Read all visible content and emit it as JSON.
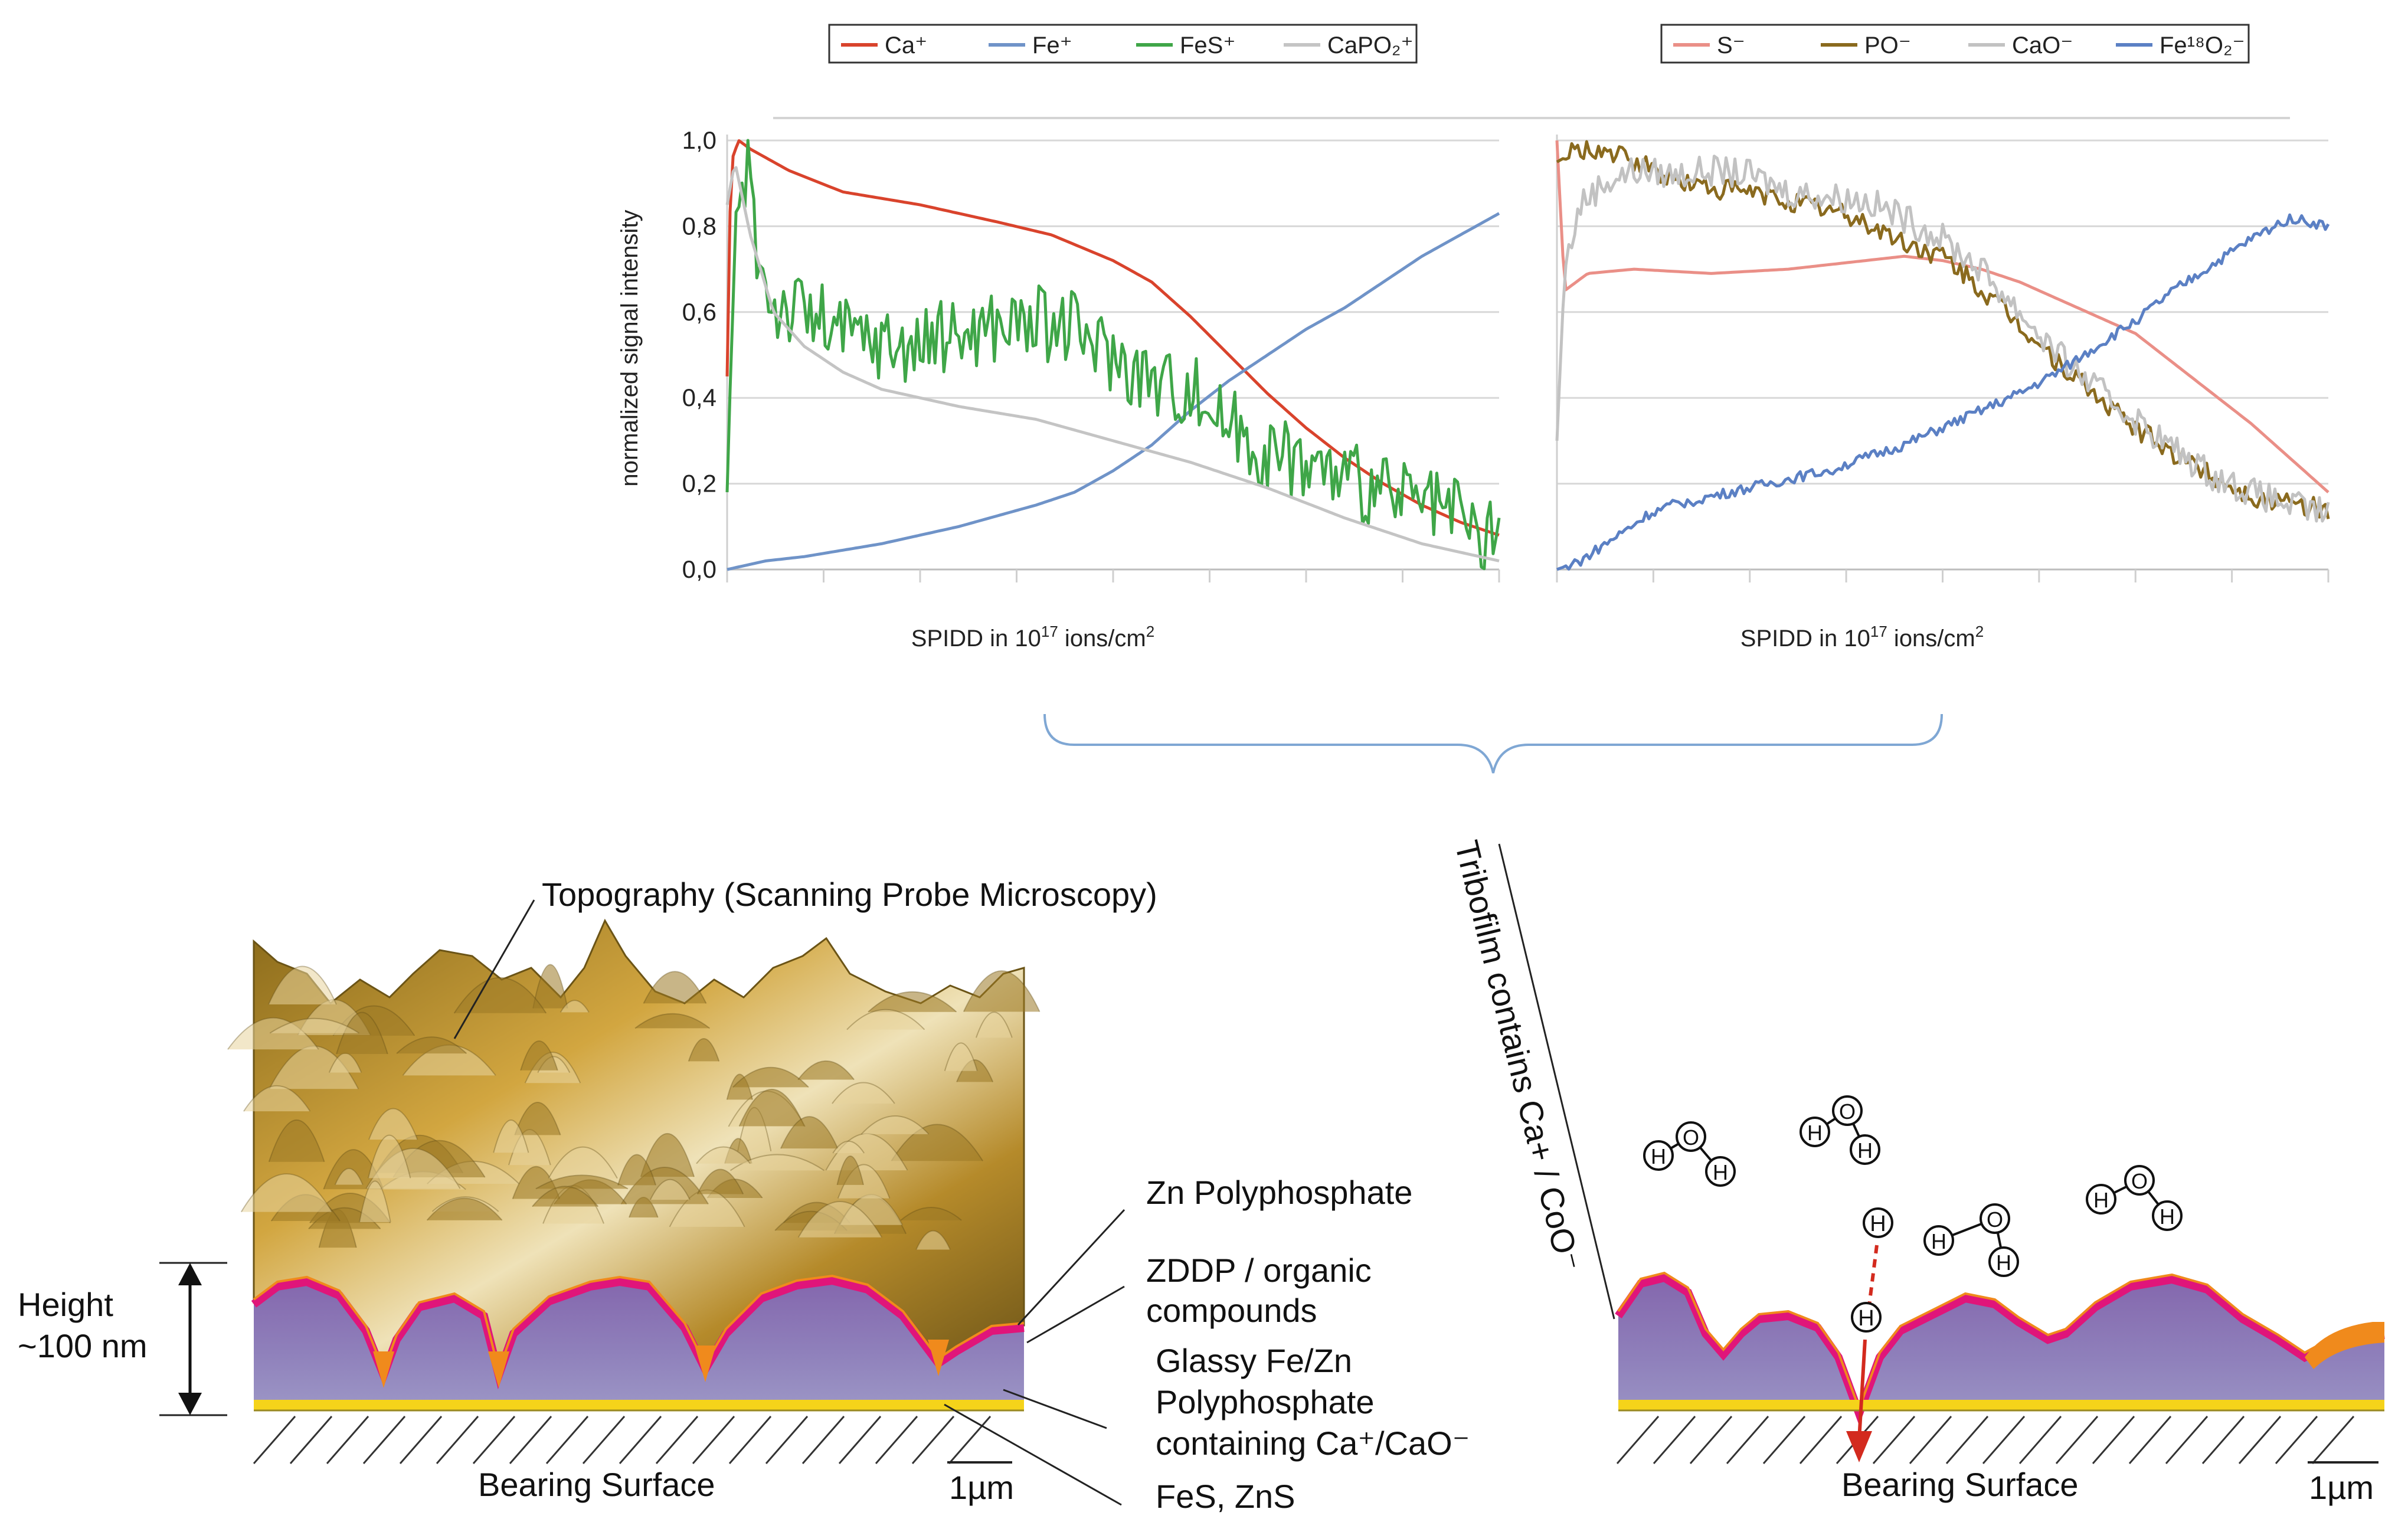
{
  "colors": {
    "ca": "#d9432c",
    "fe": "#6f93c8",
    "fes": "#3fa648",
    "capo2": "#c4c4c4",
    "s": "#ea8f87",
    "po": "#8a6a1e",
    "cao": "#c2c2c2",
    "fe18o2": "#5b80c4",
    "polyphosphate": "#8a6fb0",
    "zn_polyphosphate": "#e0157a",
    "zddp": "#f08a1c",
    "fes_zns": "#f5d31a",
    "topography": "#b08a2e",
    "arrow_red": "#d32a1e",
    "bracket": "#7fa7d4"
  },
  "chart_data": [
    {
      "type": "line",
      "ylabel": "normalized signal intensity",
      "xlabel_text": "SPIDD in 10",
      "xlabel_sup": "17",
      "xlabel_unit": " ions/cm",
      "xlabel_sup2": "2",
      "ylim": [
        0,
        1.0
      ],
      "yticks": [
        "0,0",
        "0,2",
        "0,4",
        "0,6",
        "0,8",
        "1,0"
      ],
      "x_ticks_count": 8,
      "series": [
        {
          "key": "ca",
          "name": "Ca⁺",
          "color_key": "ca",
          "noise": 0,
          "x": [
            0,
            0.005,
            0.015,
            0.03,
            0.08,
            0.15,
            0.25,
            0.35,
            0.42,
            0.5,
            0.55,
            0.6,
            0.65,
            0.7,
            0.75,
            0.8,
            0.85,
            0.9,
            0.95,
            1.0
          ],
          "y": [
            0.45,
            0.95,
            1.0,
            0.98,
            0.93,
            0.88,
            0.85,
            0.81,
            0.78,
            0.72,
            0.67,
            0.59,
            0.5,
            0.41,
            0.33,
            0.26,
            0.2,
            0.15,
            0.11,
            0.08
          ]
        },
        {
          "key": "fe",
          "name": "Fe⁺",
          "color_key": "fe",
          "noise": 0,
          "x": [
            0,
            0.05,
            0.1,
            0.2,
            0.3,
            0.4,
            0.45,
            0.5,
            0.55,
            0.6,
            0.65,
            0.7,
            0.75,
            0.8,
            0.85,
            0.9,
            0.95,
            1.0
          ],
          "y": [
            0.0,
            0.02,
            0.03,
            0.06,
            0.1,
            0.15,
            0.18,
            0.23,
            0.29,
            0.37,
            0.44,
            0.5,
            0.56,
            0.61,
            0.67,
            0.73,
            0.78,
            0.83
          ]
        },
        {
          "key": "fes",
          "name": "FeS⁺",
          "color_key": "fes",
          "noise": 0.09,
          "x": [
            0,
            0.006,
            0.012,
            0.02,
            0.028,
            0.04,
            0.06,
            0.1,
            0.15,
            0.2,
            0.25,
            0.3,
            0.35,
            0.4,
            0.45,
            0.5,
            0.55,
            0.6,
            0.65,
            0.7,
            0.75,
            0.8,
            0.85,
            0.9,
            0.95,
            0.98,
            1.0
          ],
          "y": [
            0.18,
            0.55,
            0.8,
            0.85,
            0.97,
            0.72,
            0.62,
            0.6,
            0.55,
            0.53,
            0.52,
            0.55,
            0.57,
            0.58,
            0.56,
            0.5,
            0.44,
            0.42,
            0.34,
            0.27,
            0.25,
            0.21,
            0.18,
            0.15,
            0.12,
            0.06,
            0.1
          ]
        },
        {
          "key": "capo2",
          "name": "CaPO₂⁺",
          "color_key": "capo2",
          "noise": 0,
          "x": [
            0,
            0.01,
            0.03,
            0.06,
            0.1,
            0.15,
            0.2,
            0.25,
            0.3,
            0.4,
            0.5,
            0.6,
            0.7,
            0.8,
            0.9,
            1.0
          ],
          "y": [
            0.85,
            0.95,
            0.78,
            0.6,
            0.52,
            0.46,
            0.42,
            0.4,
            0.38,
            0.35,
            0.3,
            0.25,
            0.19,
            0.12,
            0.06,
            0.02
          ]
        }
      ]
    },
    {
      "type": "line",
      "ylim": [
        0,
        1.0
      ],
      "xlabel_text": "SPIDD in 10",
      "xlabel_sup": "17",
      "xlabel_unit": " ions/cm",
      "xlabel_sup2": "2",
      "x_ticks_count": 8,
      "series": [
        {
          "key": "s",
          "name": "S⁻",
          "color_key": "s",
          "noise": 0,
          "x": [
            0,
            0.01,
            0.04,
            0.1,
            0.2,
            0.3,
            0.4,
            0.45,
            0.5,
            0.55,
            0.6,
            0.65,
            0.7,
            0.75,
            0.8,
            0.85,
            0.9,
            0.95,
            1.0
          ],
          "y": [
            1.0,
            0.65,
            0.69,
            0.7,
            0.69,
            0.7,
            0.72,
            0.73,
            0.72,
            0.7,
            0.67,
            0.63,
            0.59,
            0.55,
            0.48,
            0.41,
            0.34,
            0.26,
            0.18
          ]
        },
        {
          "key": "po",
          "name": "PO⁻",
          "color_key": "po",
          "noise": 0.025,
          "x": [
            0,
            0.02,
            0.05,
            0.1,
            0.15,
            0.2,
            0.25,
            0.3,
            0.35,
            0.4,
            0.45,
            0.5,
            0.55,
            0.6,
            0.65,
            0.7,
            0.75,
            0.8,
            0.85,
            0.9,
            0.95,
            1.0
          ],
          "y": [
            0.95,
            0.97,
            0.98,
            0.95,
            0.91,
            0.89,
            0.88,
            0.86,
            0.84,
            0.81,
            0.76,
            0.73,
            0.65,
            0.57,
            0.48,
            0.4,
            0.33,
            0.27,
            0.22,
            0.17,
            0.15,
            0.14
          ]
        },
        {
          "key": "cao",
          "name": "CaO⁻",
          "color_key": "cao",
          "noise": 0.035,
          "x": [
            0,
            0.01,
            0.03,
            0.06,
            0.1,
            0.15,
            0.2,
            0.25,
            0.3,
            0.35,
            0.4,
            0.45,
            0.5,
            0.55,
            0.6,
            0.65,
            0.7,
            0.75,
            0.8,
            0.85,
            0.9,
            0.95,
            1.0
          ],
          "y": [
            0.3,
            0.7,
            0.85,
            0.9,
            0.93,
            0.92,
            0.93,
            0.92,
            0.88,
            0.87,
            0.86,
            0.82,
            0.77,
            0.7,
            0.6,
            0.5,
            0.42,
            0.35,
            0.28,
            0.22,
            0.18,
            0.15,
            0.13
          ]
        },
        {
          "key": "fe18o2",
          "name": "Fe¹⁸O₂⁻",
          "color_key": "fe18o2",
          "noise": 0.012,
          "x": [
            0,
            0.03,
            0.08,
            0.12,
            0.15,
            0.2,
            0.25,
            0.3,
            0.35,
            0.4,
            0.45,
            0.5,
            0.55,
            0.6,
            0.65,
            0.7,
            0.75,
            0.8,
            0.85,
            0.9,
            0.95,
            1.0
          ],
          "y": [
            0.0,
            0.02,
            0.08,
            0.13,
            0.15,
            0.17,
            0.19,
            0.21,
            0.23,
            0.26,
            0.29,
            0.33,
            0.37,
            0.41,
            0.46,
            0.52,
            0.58,
            0.65,
            0.71,
            0.77,
            0.82,
            0.8
          ]
        }
      ]
    }
  ],
  "legend_left": [
    {
      "name": "Ca⁺",
      "color_key": "ca"
    },
    {
      "name": "Fe⁺",
      "color_key": "fe"
    },
    {
      "name": "FeS⁺",
      "color_key": "fes"
    },
    {
      "name": "CaPO₂⁺",
      "color_key": "capo2"
    }
  ],
  "legend_right": [
    {
      "name": "S⁻",
      "color_key": "s"
    },
    {
      "name": "PO⁻",
      "color_key": "po"
    },
    {
      "name": "CaO⁻",
      "color_key": "cao"
    },
    {
      "name": "Fe¹⁸O₂⁻",
      "color_key": "fe18o2"
    }
  ],
  "labels": {
    "topography": "Topography (Scanning Probe Microscopy)",
    "height_line1": "Height",
    "height_line2": "~100 nm",
    "zn_poly": "Zn Polyphosphate",
    "zddp_1": "ZDDP / organic",
    "zddp_2": "compounds",
    "glassy_1": "Glassy Fe/Zn",
    "glassy_2": "Polyphosphate",
    "glassy_3": "containing Ca⁺/CaO⁻",
    "fes_zns": "FeS, ZnS",
    "bearing_left": "Bearing Surface",
    "bearing_right": "Bearing Surface",
    "scale_left": "1µm",
    "scale_right": "1µm",
    "tribofilm": "Tribofilm contains Ca+ / CoO⁻"
  },
  "molecules": [
    {
      "o": "O",
      "h1": "H",
      "h2": "H"
    },
    {
      "o": "O",
      "h1": "H",
      "h2": "H"
    },
    {
      "o": "O",
      "h1": "H",
      "h2": "H"
    },
    {
      "o": "O",
      "h1": "H",
      "h2": "H"
    }
  ],
  "h_atoms": [
    "H",
    "H"
  ]
}
